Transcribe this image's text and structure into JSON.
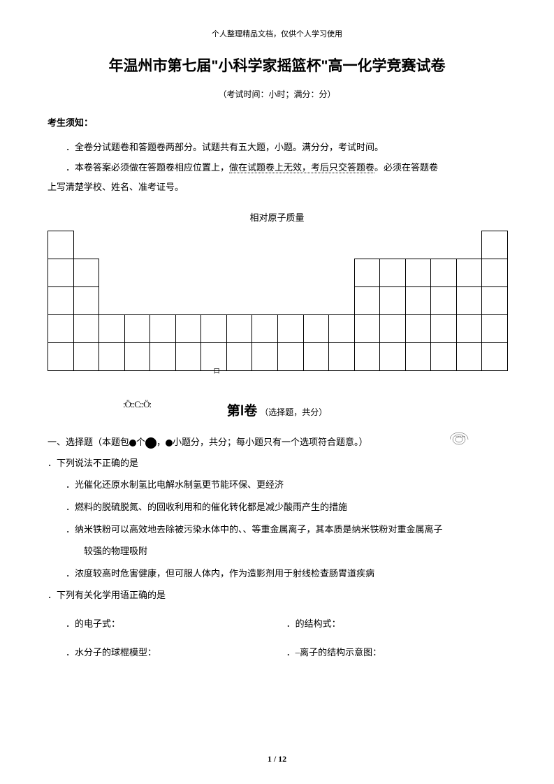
{
  "header_note": "个人整理精品文档，仅供个人学习使用",
  "title": "年温州市第七届\"小科学家摇篮杯\"高一化学竞赛试卷",
  "subtitle": "（考试时间：小时；满分：分）",
  "notice_heading": "考生须知：",
  "instruction1_plain": "．全卷分试题卷和答题卷两部分。试题共有五大题，小题。满分分，考试时间。",
  "instruction2_plain": "．本卷答案必须做在答题卷相应位置上，",
  "instruction2_dotted": "做在试题卷上无效，考后只交答题卷",
  "instruction2_tail": "。必须在答题卷",
  "instruction3": "上写清楚学校、姓名、准考证号。",
  "periodic_label": "相对原子质量",
  "pt_small_char": "口",
  "lewis": ":Ö::C::Ö:",
  "section1_title": "第Ⅰ卷",
  "section1_sub": "（选择题，共分）",
  "mc_header_pre": "一、选择题（本题包",
  "mc_header_mid": "个",
  "mc_header_mid2": "，",
  "mc_header_post": "小题分，共分；每小题只有一个选项符合题意。）",
  "concentric_text": "+17 2 8 8",
  "q1": "．下列说法不正确的是",
  "q1a": "．光催化还原水制氢比电解水制氢更节能环保、更经济",
  "q1b": "．燃料的脱硫脱氮、的回收利用和的催化转化都是减少酸雨产生的措施",
  "q1c": "．纳米铁粉可以高效地去除被污染水体中的、、等重金属离子，其本质是纳米铁粉对重金属离子",
  "q1c_cont": "较强的物理吸附",
  "q1d": "．浓度较高时危害健康，但可服人体内，作为造影剂用于射线检查肠胃道疾病",
  "q2": "．下列有关化学用语正确的是",
  "q2a": "．的电子式：",
  "q2b": "．的结构式：",
  "q2c": "．水分子的球棍模型：",
  "q2d": "．–离子的结构示意图：",
  "footer": "1 / 12",
  "colors": {
    "text": "#000000",
    "background": "#ffffff",
    "border": "#000000"
  },
  "periodic_table": {
    "cell_size": 36,
    "rows_layout": [
      {
        "row": 0,
        "cols": [
          0,
          17
        ]
      },
      {
        "row": 1,
        "cols": [
          0,
          1,
          12,
          13,
          14,
          15,
          16,
          17
        ]
      },
      {
        "row": 2,
        "cols": [
          0,
          1,
          12,
          13,
          14,
          15,
          16,
          17
        ]
      },
      {
        "row": 3,
        "cols": [
          0,
          1,
          2,
          3,
          4,
          5,
          6,
          7,
          8,
          9,
          10,
          11,
          12,
          13,
          14,
          15,
          16,
          17
        ]
      },
      {
        "row": 4,
        "cols": [
          0,
          1,
          2,
          3,
          4,
          5,
          6,
          7,
          8,
          9,
          10,
          11,
          12,
          13,
          14,
          15,
          16,
          17
        ]
      }
    ],
    "small_char_pos": {
      "col": 6.5,
      "row": 4.85
    }
  }
}
